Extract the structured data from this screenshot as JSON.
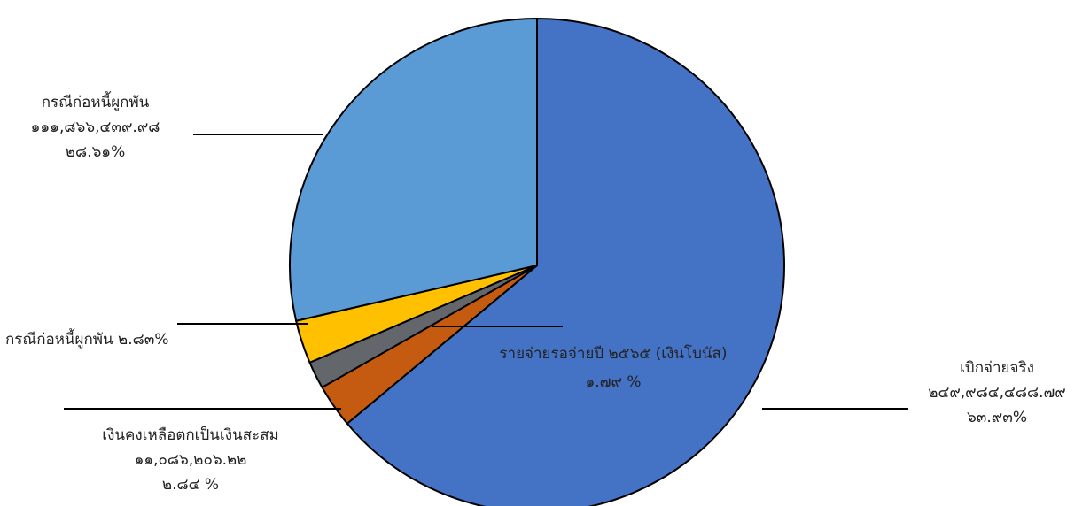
{
  "chart_data": {
    "type": "pie",
    "title": "",
    "slices": [
      {
        "name": "เบิกจ่ายจริง",
        "amount": "๒๔๙,๙๘๔,๔๘๘.๗๙",
        "percent_label": "๖๓.๙๓%",
        "value": 63.93,
        "color": "#4472C4"
      },
      {
        "name": "เงินคงเหลือตกเป็นเงินสะสม",
        "amount": "๑๑,๐๘๖,๒๐๖.๒๒",
        "percent_label": "๒.๘๔ %",
        "value": 2.84,
        "color": "#C55A11"
      },
      {
        "name": "รายจ่ายรอจ่ายปี ๒๕๖๕ (เงินโบนัส)",
        "amount": "",
        "percent_label": "๑.๗๙ %",
        "value": 1.79,
        "color": "#63666A"
      },
      {
        "name": "กรณีก่อหนี้ผูกพัน",
        "amount": "",
        "percent_label": "๒.๘๓%",
        "value": 2.83,
        "color": "#FFC000"
      },
      {
        "name": "กรณีก่อหนี้ผูกพัน",
        "amount": "๑๑๑,๘๖๖,๔๓๙.๙๘",
        "percent_label": "๒๘.๖๑%",
        "value": 28.61,
        "color": "#5B9BD5"
      }
    ],
    "legend": "none"
  },
  "labels": {
    "actual": {
      "name": "เบิกจ่ายจริง",
      "amount": "๒๔๙,๙๘๔,๔๘๘.๗๙",
      "pct": "๖๓.๙๓%"
    },
    "remaining": {
      "name": "เงินคงเหลือตกเป็นเงินสะสม",
      "amount": "๑๑,๐๘๖,๒๐๖.๒๒",
      "pct": "๒.๘๔ %"
    },
    "pending": {
      "name": "รายจ่ายรอจ่ายปี ๒๕๖๕ (เงินโบนัส)",
      "pct": "๑.๗๙ %"
    },
    "debt_small": {
      "text": "กรณีก่อหนี้ผูกพัน ๒.๘๓%"
    },
    "debt_big": {
      "name": "กรณีก่อหนี้ผูกพัน",
      "amount": "๑๑๑,๘๖๖,๔๓๙.๙๘",
      "pct": "๒๘.๖๑%"
    }
  }
}
